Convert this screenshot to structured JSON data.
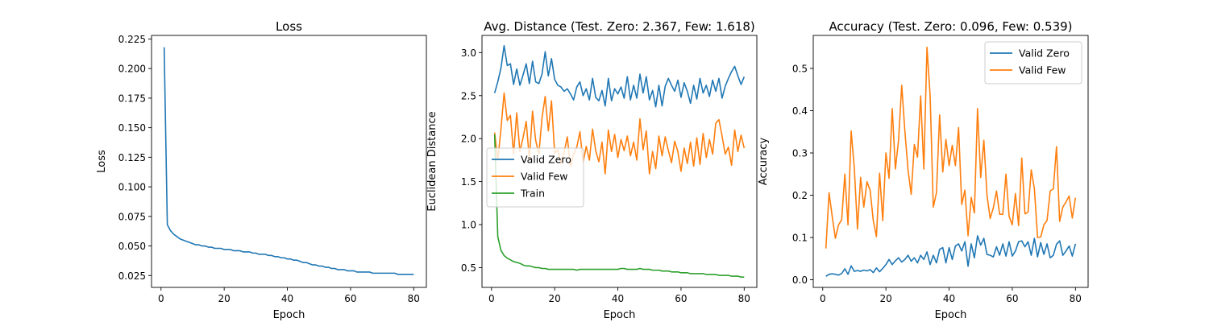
{
  "chart_data": [
    {
      "type": "line",
      "title": "Loss",
      "xlabel": "Epoch",
      "ylabel": "Loss",
      "xlim": [
        -3,
        84
      ],
      "ylim": [
        0.015,
        0.228
      ],
      "xticks": [
        0,
        20,
        40,
        60,
        80
      ],
      "yticks": [
        0.025,
        0.05,
        0.075,
        0.1,
        0.125,
        0.15,
        0.175,
        0.2,
        0.225
      ],
      "ytick_decimals": 3,
      "grid": false,
      "legend": null,
      "x": [
        1,
        2,
        3,
        4,
        5,
        6,
        7,
        8,
        9,
        10,
        11,
        12,
        13,
        14,
        15,
        16,
        17,
        18,
        19,
        20,
        21,
        22,
        23,
        24,
        25,
        26,
        27,
        28,
        29,
        30,
        31,
        32,
        33,
        34,
        35,
        36,
        37,
        38,
        39,
        40,
        41,
        42,
        43,
        44,
        45,
        46,
        47,
        48,
        49,
        50,
        51,
        52,
        53,
        54,
        55,
        56,
        57,
        58,
        59,
        60,
        61,
        62,
        63,
        64,
        65,
        66,
        67,
        68,
        69,
        70,
        71,
        72,
        73,
        74,
        75,
        76,
        77,
        78,
        79,
        80
      ],
      "series": [
        {
          "color": "#1f77b4",
          "values": [
            0.218,
            0.068,
            0.063,
            0.06,
            0.058,
            0.056,
            0.055,
            0.054,
            0.053,
            0.052,
            0.051,
            0.051,
            0.05,
            0.05,
            0.049,
            0.049,
            0.048,
            0.048,
            0.048,
            0.047,
            0.047,
            0.047,
            0.046,
            0.046,
            0.046,
            0.045,
            0.045,
            0.045,
            0.044,
            0.044,
            0.043,
            0.043,
            0.043,
            0.042,
            0.042,
            0.041,
            0.041,
            0.04,
            0.04,
            0.039,
            0.039,
            0.038,
            0.038,
            0.037,
            0.036,
            0.036,
            0.035,
            0.034,
            0.034,
            0.033,
            0.033,
            0.032,
            0.032,
            0.031,
            0.031,
            0.03,
            0.03,
            0.03,
            0.029,
            0.029,
            0.029,
            0.028,
            0.028,
            0.028,
            0.028,
            0.028,
            0.027,
            0.027,
            0.027,
            0.027,
            0.027,
            0.027,
            0.027,
            0.027,
            0.026,
            0.026,
            0.026,
            0.026,
            0.026,
            0.026
          ]
        }
      ]
    },
    {
      "type": "line",
      "title": "Avg. Distance (Test. Zero: 2.367, Few: 1.618)",
      "xlabel": "Epoch",
      "ylabel": "Euclidean Distance",
      "xlim": [
        -3,
        84
      ],
      "ylim": [
        0.27,
        3.2
      ],
      "xticks": [
        0,
        20,
        40,
        60,
        80
      ],
      "yticks": [
        0.5,
        1.0,
        1.5,
        2.0,
        2.5,
        3.0
      ],
      "ytick_decimals": 1,
      "grid": false,
      "legend": "center-left",
      "x": [
        1,
        2,
        3,
        4,
        5,
        6,
        7,
        8,
        9,
        10,
        11,
        12,
        13,
        14,
        15,
        16,
        17,
        18,
        19,
        20,
        21,
        22,
        23,
        24,
        25,
        26,
        27,
        28,
        29,
        30,
        31,
        32,
        33,
        34,
        35,
        36,
        37,
        38,
        39,
        40,
        41,
        42,
        43,
        44,
        45,
        46,
        47,
        48,
        49,
        50,
        51,
        52,
        53,
        54,
        55,
        56,
        57,
        58,
        59,
        60,
        61,
        62,
        63,
        64,
        65,
        66,
        67,
        68,
        69,
        70,
        71,
        72,
        73,
        74,
        75,
        76,
        77,
        78,
        79,
        80
      ],
      "series": [
        {
          "name": "Valid Zero",
          "color": "#1f77b4",
          "values": [
            2.53,
            2.66,
            2.82,
            3.08,
            2.85,
            2.87,
            2.63,
            2.81,
            2.62,
            2.74,
            2.87,
            2.64,
            2.9,
            2.66,
            2.64,
            2.75,
            3.01,
            2.73,
            2.93,
            2.69,
            2.62,
            2.6,
            2.55,
            2.58,
            2.52,
            2.45,
            2.6,
            2.66,
            2.5,
            2.58,
            2.45,
            2.7,
            2.48,
            2.44,
            2.56,
            2.38,
            2.7,
            2.44,
            2.58,
            2.52,
            2.6,
            2.47,
            2.72,
            2.45,
            2.62,
            2.47,
            2.75,
            2.53,
            2.72,
            2.45,
            2.56,
            2.37,
            2.62,
            2.38,
            2.61,
            2.7,
            2.62,
            2.55,
            2.68,
            2.48,
            2.65,
            2.55,
            2.41,
            2.62,
            2.46,
            2.7,
            2.53,
            2.62,
            2.49,
            2.68,
            2.55,
            2.7,
            2.47,
            2.61,
            2.7,
            2.78,
            2.84,
            2.73,
            2.63,
            2.72
          ]
        },
        {
          "name": "Valid Few",
          "color": "#ff7f0e",
          "values": [
            2.07,
            1.75,
            2.11,
            2.53,
            2.21,
            2.27,
            1.82,
            2.3,
            1.85,
            2.01,
            2.2,
            1.76,
            2.32,
            1.98,
            1.82,
            2.24,
            2.49,
            2.09,
            2.44,
            1.83,
            1.87,
            1.71,
            1.84,
            2.02,
            1.68,
            1.82,
            1.9,
            2.08,
            1.72,
            1.91,
            1.75,
            2.11,
            1.86,
            1.73,
            1.96,
            1.59,
            2.1,
            1.85,
            2.05,
            1.78,
            1.99,
            1.86,
            2.03,
            1.8,
            1.96,
            1.75,
            2.23,
            1.87,
            2.09,
            1.59,
            1.85,
            1.65,
            2.03,
            1.8,
            2.02,
            1.86,
            1.72,
            1.97,
            1.85,
            1.62,
            1.89,
            1.71,
            1.96,
            1.68,
            2.01,
            1.7,
            2.06,
            1.78,
            1.99,
            1.82,
            2.18,
            2.22,
            2.03,
            1.82,
            1.9,
            1.69,
            2.1,
            1.85,
            2.04,
            1.89
          ]
        },
        {
          "name": "Train",
          "color": "#2ca02c",
          "values": [
            2.05,
            0.86,
            0.7,
            0.64,
            0.61,
            0.59,
            0.57,
            0.56,
            0.55,
            0.53,
            0.52,
            0.52,
            0.51,
            0.5,
            0.5,
            0.49,
            0.49,
            0.48,
            0.48,
            0.48,
            0.48,
            0.48,
            0.48,
            0.48,
            0.48,
            0.48,
            0.47,
            0.48,
            0.48,
            0.48,
            0.48,
            0.48,
            0.48,
            0.48,
            0.48,
            0.48,
            0.48,
            0.48,
            0.48,
            0.48,
            0.49,
            0.49,
            0.48,
            0.48,
            0.48,
            0.48,
            0.49,
            0.48,
            0.48,
            0.48,
            0.47,
            0.47,
            0.47,
            0.46,
            0.46,
            0.46,
            0.45,
            0.45,
            0.45,
            0.44,
            0.44,
            0.44,
            0.43,
            0.43,
            0.43,
            0.43,
            0.43,
            0.42,
            0.42,
            0.42,
            0.42,
            0.41,
            0.41,
            0.41,
            0.41,
            0.4,
            0.4,
            0.4,
            0.39,
            0.39
          ]
        }
      ]
    },
    {
      "type": "line",
      "title": "Accuracy (Test. Zero: 0.096, Few: 0.539)",
      "xlabel": "Epoch",
      "ylabel": "Accuracy",
      "xlim": [
        -3,
        84
      ],
      "ylim": [
        -0.018,
        0.578
      ],
      "xticks": [
        0,
        20,
        40,
        60,
        80
      ],
      "yticks": [
        0.0,
        0.1,
        0.2,
        0.3,
        0.4,
        0.5
      ],
      "ytick_decimals": 1,
      "grid": false,
      "legend": "top-right",
      "x": [
        1,
        2,
        3,
        4,
        5,
        6,
        7,
        8,
        9,
        10,
        11,
        12,
        13,
        14,
        15,
        16,
        17,
        18,
        19,
        20,
        21,
        22,
        23,
        24,
        25,
        26,
        27,
        28,
        29,
        30,
        31,
        32,
        33,
        34,
        35,
        36,
        37,
        38,
        39,
        40,
        41,
        42,
        43,
        44,
        45,
        46,
        47,
        48,
        49,
        50,
        51,
        52,
        53,
        54,
        55,
        56,
        57,
        58,
        59,
        60,
        61,
        62,
        63,
        64,
        65,
        66,
        67,
        68,
        69,
        70,
        71,
        72,
        73,
        74,
        75,
        76,
        77,
        78,
        79,
        80
      ],
      "series": [
        {
          "name": "Valid Zero",
          "color": "#1f77b4",
          "values": [
            0.008,
            0.013,
            0.014,
            0.013,
            0.011,
            0.015,
            0.026,
            0.013,
            0.033,
            0.02,
            0.022,
            0.02,
            0.023,
            0.021,
            0.024,
            0.017,
            0.028,
            0.019,
            0.027,
            0.036,
            0.048,
            0.036,
            0.045,
            0.052,
            0.042,
            0.048,
            0.058,
            0.044,
            0.052,
            0.04,
            0.058,
            0.048,
            0.066,
            0.036,
            0.058,
            0.04,
            0.072,
            0.076,
            0.04,
            0.076,
            0.048,
            0.08,
            0.085,
            0.068,
            0.09,
            0.032,
            0.085,
            0.052,
            0.104,
            0.082,
            0.098,
            0.06,
            0.058,
            0.054,
            0.078,
            0.058,
            0.085,
            0.056,
            0.09,
            0.056,
            0.068,
            0.09,
            0.092,
            0.078,
            0.09,
            0.058,
            0.098,
            0.054,
            0.088,
            0.06,
            0.085,
            0.052,
            0.058,
            0.084,
            0.092,
            0.058,
            0.068,
            0.08,
            0.056,
            0.085
          ]
        },
        {
          "name": "Valid Few",
          "color": "#ff7f0e",
          "values": [
            0.074,
            0.206,
            0.15,
            0.098,
            0.13,
            0.142,
            0.25,
            0.13,
            0.352,
            0.264,
            0.12,
            0.242,
            0.172,
            0.232,
            0.212,
            0.14,
            0.102,
            0.252,
            0.14,
            0.3,
            0.24,
            0.405,
            0.262,
            0.33,
            0.46,
            0.352,
            0.26,
            0.202,
            0.32,
            0.29,
            0.435,
            0.262,
            0.55,
            0.435,
            0.172,
            0.206,
            0.39,
            0.255,
            0.332,
            0.27,
            0.318,
            0.27,
            0.36,
            0.178,
            0.212,
            0.104,
            0.195,
            0.158,
            0.405,
            0.242,
            0.33,
            0.2,
            0.145,
            0.17,
            0.21,
            0.155,
            0.155,
            0.25,
            0.15,
            0.13,
            0.204,
            0.128,
            0.288,
            0.156,
            0.16,
            0.26,
            0.215,
            0.1,
            0.101,
            0.13,
            0.14,
            0.21,
            0.215,
            0.315,
            0.138,
            0.172,
            0.184,
            0.198,
            0.146,
            0.194
          ]
        }
      ]
    }
  ]
}
